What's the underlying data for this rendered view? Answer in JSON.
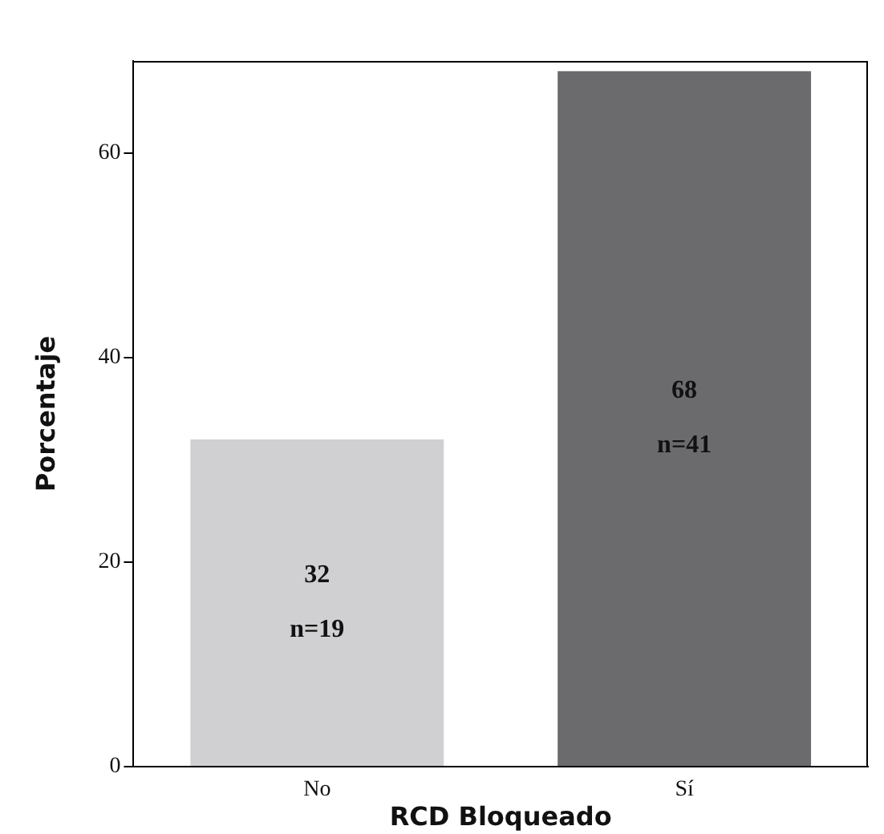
{
  "chart_data": {
    "type": "bar",
    "xlabel": "RCD Bloqueado",
    "ylabel": "Porcentaje",
    "categories": [
      "No",
      "Sí"
    ],
    "values": [
      32,
      68
    ],
    "colors": [
      "#d0d0d2",
      "#6b6b6e"
    ],
    "value_labels": [
      "32\nn=19",
      "68\nn=41"
    ],
    "ylim": [
      0,
      69
    ],
    "yticks": [
      0,
      20,
      40,
      60
    ],
    "grid": false,
    "legend": false
  }
}
